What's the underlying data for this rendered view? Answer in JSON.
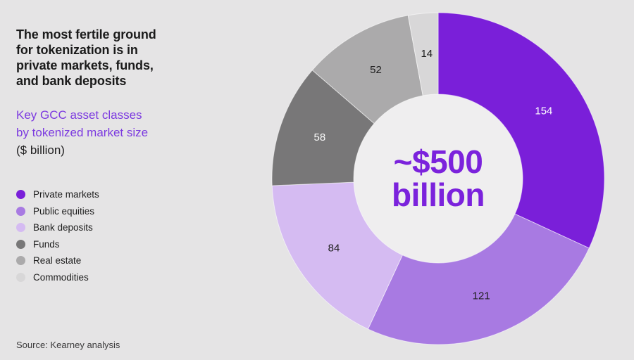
{
  "header": {
    "title": "The most fertile ground\nfor tokenization is in\nprivate markets, funds,\nand bank deposits",
    "subtitle": "Key GCC asset classes\nby tokenized market size",
    "unit": "($ billion)"
  },
  "footer": {
    "source": "Source: Kearney analysis"
  },
  "colors": {
    "background": "#E5E4E5",
    "donut_hole": "#EFEEEF",
    "title_text": "#1A1A1A",
    "subtitle_text": "#7C3AE0",
    "center_text": "#7B22DC",
    "body_text": "#1E1E1E",
    "source_text": "#3C3B3C"
  },
  "chart_data": {
    "type": "pie",
    "subtype": "donut",
    "title": "Key GCC asset classes by tokenized market size",
    "unit": "$ billion",
    "direction": "clockwise",
    "start_angle_deg": 0,
    "legend_position": "left",
    "center_value": "~$500",
    "center_word": "billion",
    "total": 483,
    "series": [
      {
        "name": "Private markets",
        "value": 154,
        "color": "#7A1FD9",
        "value_label_color": "#FFFFFF"
      },
      {
        "name": "Public equities",
        "value": 121,
        "color": "#A87AE2",
        "value_label_color": "#1E1E1E"
      },
      {
        "name": "Bank deposits",
        "value": 84,
        "color": "#D5BBF2",
        "value_label_color": "#1E1E1E"
      },
      {
        "name": "Funds",
        "value": 58,
        "color": "#787778",
        "value_label_color": "#FAFAFA"
      },
      {
        "name": "Real estate",
        "value": 52,
        "color": "#ABAAAB",
        "value_label_color": "#1E1E1E"
      },
      {
        "name": "Commodities",
        "value": 14,
        "color": "#D8D7D8",
        "value_label_color": "#1E1E1E"
      }
    ]
  }
}
